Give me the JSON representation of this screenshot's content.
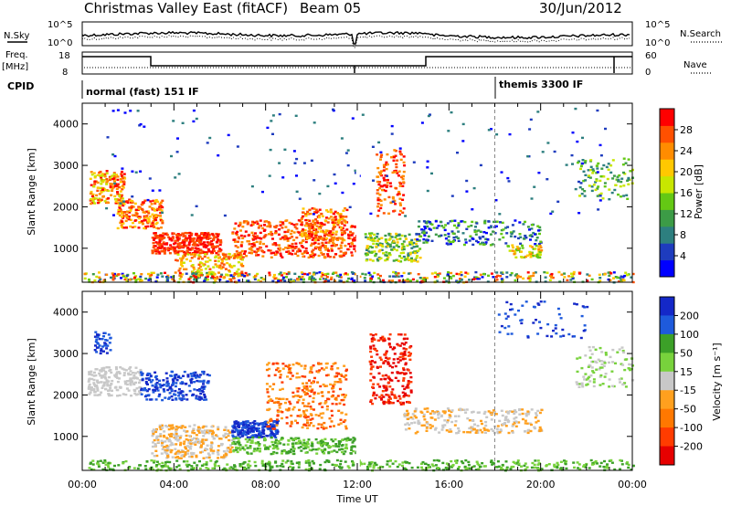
{
  "header": {
    "title": "Christmas Valley East (fitACF)",
    "beam": "Beam 05",
    "date": "30/Jun/2012"
  },
  "top_panels": {
    "nsky_label": "N.Sky",
    "nsky_ticks": [
      "10^5",
      "10^0"
    ],
    "nsearch_label": "N.Search",
    "freq_label_1": "Freq.",
    "freq_label_2": "[MHz]",
    "freq_ticks": [
      "18",
      "8"
    ],
    "nave_label": "Nave",
    "nave_ticks": [
      "60",
      "0"
    ],
    "cpid_label": "CPID",
    "cpid_segments": [
      {
        "label": "normal (fast) 151 IF",
        "start_hour": 0
      },
      {
        "label": "themis 3300 IF",
        "start_hour": 18
      }
    ]
  },
  "chart_data": [
    {
      "type": "heatmap",
      "name": "power",
      "ylabel": "Slant Range [km]",
      "xlabel": "Time UT",
      "x_ticks": [
        "00:00",
        "04:00",
        "08:00",
        "12:00",
        "16:00",
        "20:00",
        "00:00"
      ],
      "x_range_hours": [
        0,
        24
      ],
      "ylim": [
        180,
        4500
      ],
      "y_ticks": [
        1000,
        2000,
        3000,
        4000
      ],
      "colorbar": {
        "label": "Power [dB]",
        "ticks": [
          4,
          8,
          12,
          16,
          20,
          24,
          28
        ],
        "range": [
          0,
          32
        ],
        "colors": [
          "#0000ff",
          "#1e3cbe",
          "#2d7f7f",
          "#3c9b46",
          "#64c814",
          "#c8e600",
          "#ffc800",
          "#ff8c00",
          "#ff5000",
          "#ff0000"
        ]
      }
    },
    {
      "type": "heatmap",
      "name": "velocity",
      "ylabel": "Slant Range [km]",
      "xlabel": "Time UT",
      "x_ticks": [
        "00:00",
        "04:00",
        "08:00",
        "12:00",
        "16:00",
        "20:00",
        "00:00"
      ],
      "x_range_hours": [
        0,
        24
      ],
      "ylim": [
        180,
        4500
      ],
      "y_ticks": [
        1000,
        2000,
        3000,
        4000
      ],
      "colorbar": {
        "label": "Velocity [m s⁻¹]",
        "ticks": [
          200,
          100,
          50,
          15,
          -15,
          -50,
          -100,
          -200
        ],
        "colors": [
          "#1428c8",
          "#1e5adc",
          "#3ca028",
          "#78d23c",
          "#c8c8c8",
          "#ffa01e",
          "#ff7800",
          "#ff3c00",
          "#e60000"
        ]
      }
    }
  ]
}
